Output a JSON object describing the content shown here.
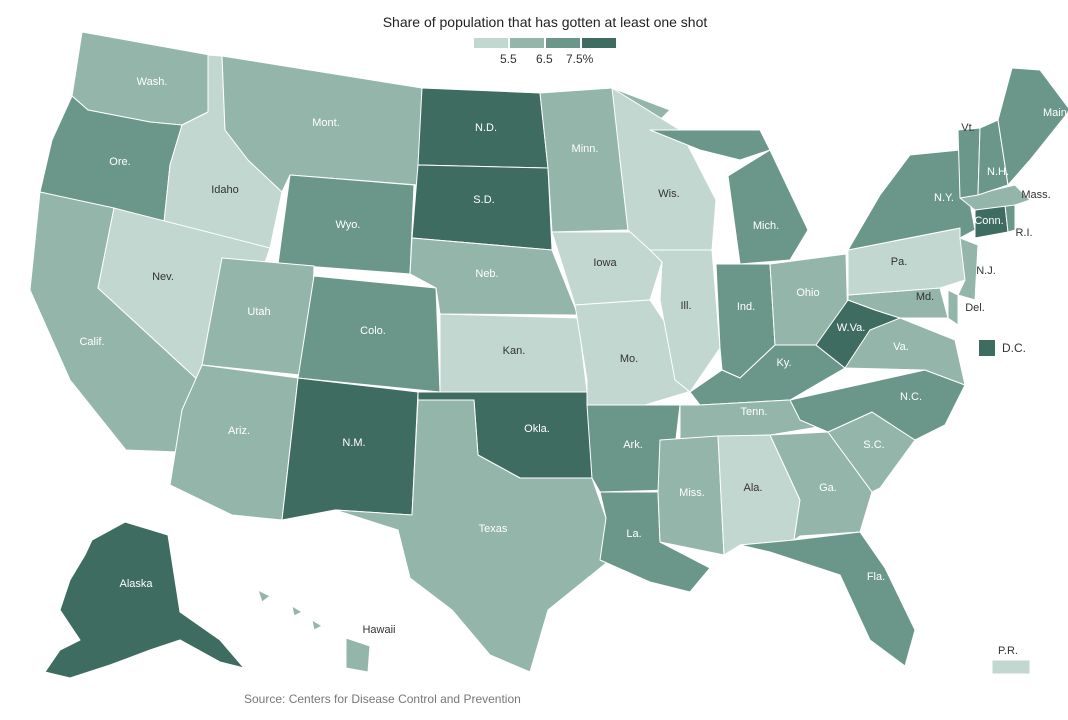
{
  "title": "Share of population that has gotten at least one shot",
  "legend": {
    "ticks": [
      "5.5",
      "6.5",
      "7.5%"
    ],
    "colors": [
      "#c2d7cf",
      "#93b5aa",
      "#6b978a",
      "#3f6c60"
    ]
  },
  "source": "Source: Centers for Disease Control and Prevention",
  "dc": {
    "label": "D.C.",
    "level": 3
  },
  "states": [
    {
      "id": "wa",
      "label": "Wash.",
      "level": 1
    },
    {
      "id": "or",
      "label": "Ore.",
      "level": 2
    },
    {
      "id": "ca",
      "label": "Calif.",
      "level": 1
    },
    {
      "id": "id",
      "label": "Idaho",
      "level": 0
    },
    {
      "id": "nv",
      "label": "Nev.",
      "level": 0
    },
    {
      "id": "mt",
      "label": "Mont.",
      "level": 1
    },
    {
      "id": "wy",
      "label": "Wyo.",
      "level": 2
    },
    {
      "id": "ut",
      "label": "Utah",
      "level": 1
    },
    {
      "id": "az",
      "label": "Ariz.",
      "level": 1
    },
    {
      "id": "co",
      "label": "Colo.",
      "level": 2
    },
    {
      "id": "nm",
      "label": "N.M.",
      "level": 3
    },
    {
      "id": "nd",
      "label": "N.D.",
      "level": 3
    },
    {
      "id": "sd",
      "label": "S.D.",
      "level": 3
    },
    {
      "id": "ne",
      "label": "Neb.",
      "level": 1
    },
    {
      "id": "ks",
      "label": "Kan.",
      "level": 0
    },
    {
      "id": "ok",
      "label": "Okla.",
      "level": 3
    },
    {
      "id": "tx",
      "label": "Texas",
      "level": 1
    },
    {
      "id": "mn",
      "label": "Minn.",
      "level": 1
    },
    {
      "id": "ia",
      "label": "Iowa",
      "level": 0
    },
    {
      "id": "mo",
      "label": "Mo.",
      "level": 0
    },
    {
      "id": "ar",
      "label": "Ark.",
      "level": 2
    },
    {
      "id": "la",
      "label": "La.",
      "level": 2
    },
    {
      "id": "wi",
      "label": "Wis.",
      "level": 0
    },
    {
      "id": "il",
      "label": "Ill.",
      "level": 0
    },
    {
      "id": "mi",
      "label": "Mich.",
      "level": 2
    },
    {
      "id": "in",
      "label": "Ind.",
      "level": 2
    },
    {
      "id": "oh",
      "label": "Ohio",
      "level": 1
    },
    {
      "id": "ky",
      "label": "Ky.",
      "level": 2
    },
    {
      "id": "tn",
      "label": "Tenn.",
      "level": 1
    },
    {
      "id": "ms",
      "label": "Miss.",
      "level": 1
    },
    {
      "id": "al",
      "label": "Ala.",
      "level": 0
    },
    {
      "id": "ga",
      "label": "Ga.",
      "level": 1
    },
    {
      "id": "fl",
      "label": "Fla.",
      "level": 2
    },
    {
      "id": "sc",
      "label": "S.C.",
      "level": 1
    },
    {
      "id": "nc",
      "label": "N.C.",
      "level": 2
    },
    {
      "id": "va",
      "label": "Va.",
      "level": 1
    },
    {
      "id": "wv",
      "label": "W.Va.",
      "level": 3
    },
    {
      "id": "md",
      "label": "Md.",
      "level": 1
    },
    {
      "id": "de",
      "label": "Del.",
      "level": 1
    },
    {
      "id": "pa",
      "label": "Pa.",
      "level": 0
    },
    {
      "id": "nj",
      "label": "N.J.",
      "level": 1
    },
    {
      "id": "ny",
      "label": "N.Y.",
      "level": 2
    },
    {
      "id": "ct",
      "label": "Conn.",
      "level": 3
    },
    {
      "id": "ri",
      "label": "R.I.",
      "level": 2
    },
    {
      "id": "ma",
      "label": "Mass.",
      "level": 1
    },
    {
      "id": "vt",
      "label": "Vt.",
      "level": 2
    },
    {
      "id": "nh",
      "label": "N.H.",
      "level": 2
    },
    {
      "id": "me",
      "label": "Maine",
      "level": 2
    },
    {
      "id": "ak",
      "label": "Alaska",
      "level": 3
    },
    {
      "id": "hi",
      "label": "Hawaii",
      "level": 1
    },
    {
      "id": "pr",
      "label": "P.R.",
      "level": 0
    }
  ]
}
